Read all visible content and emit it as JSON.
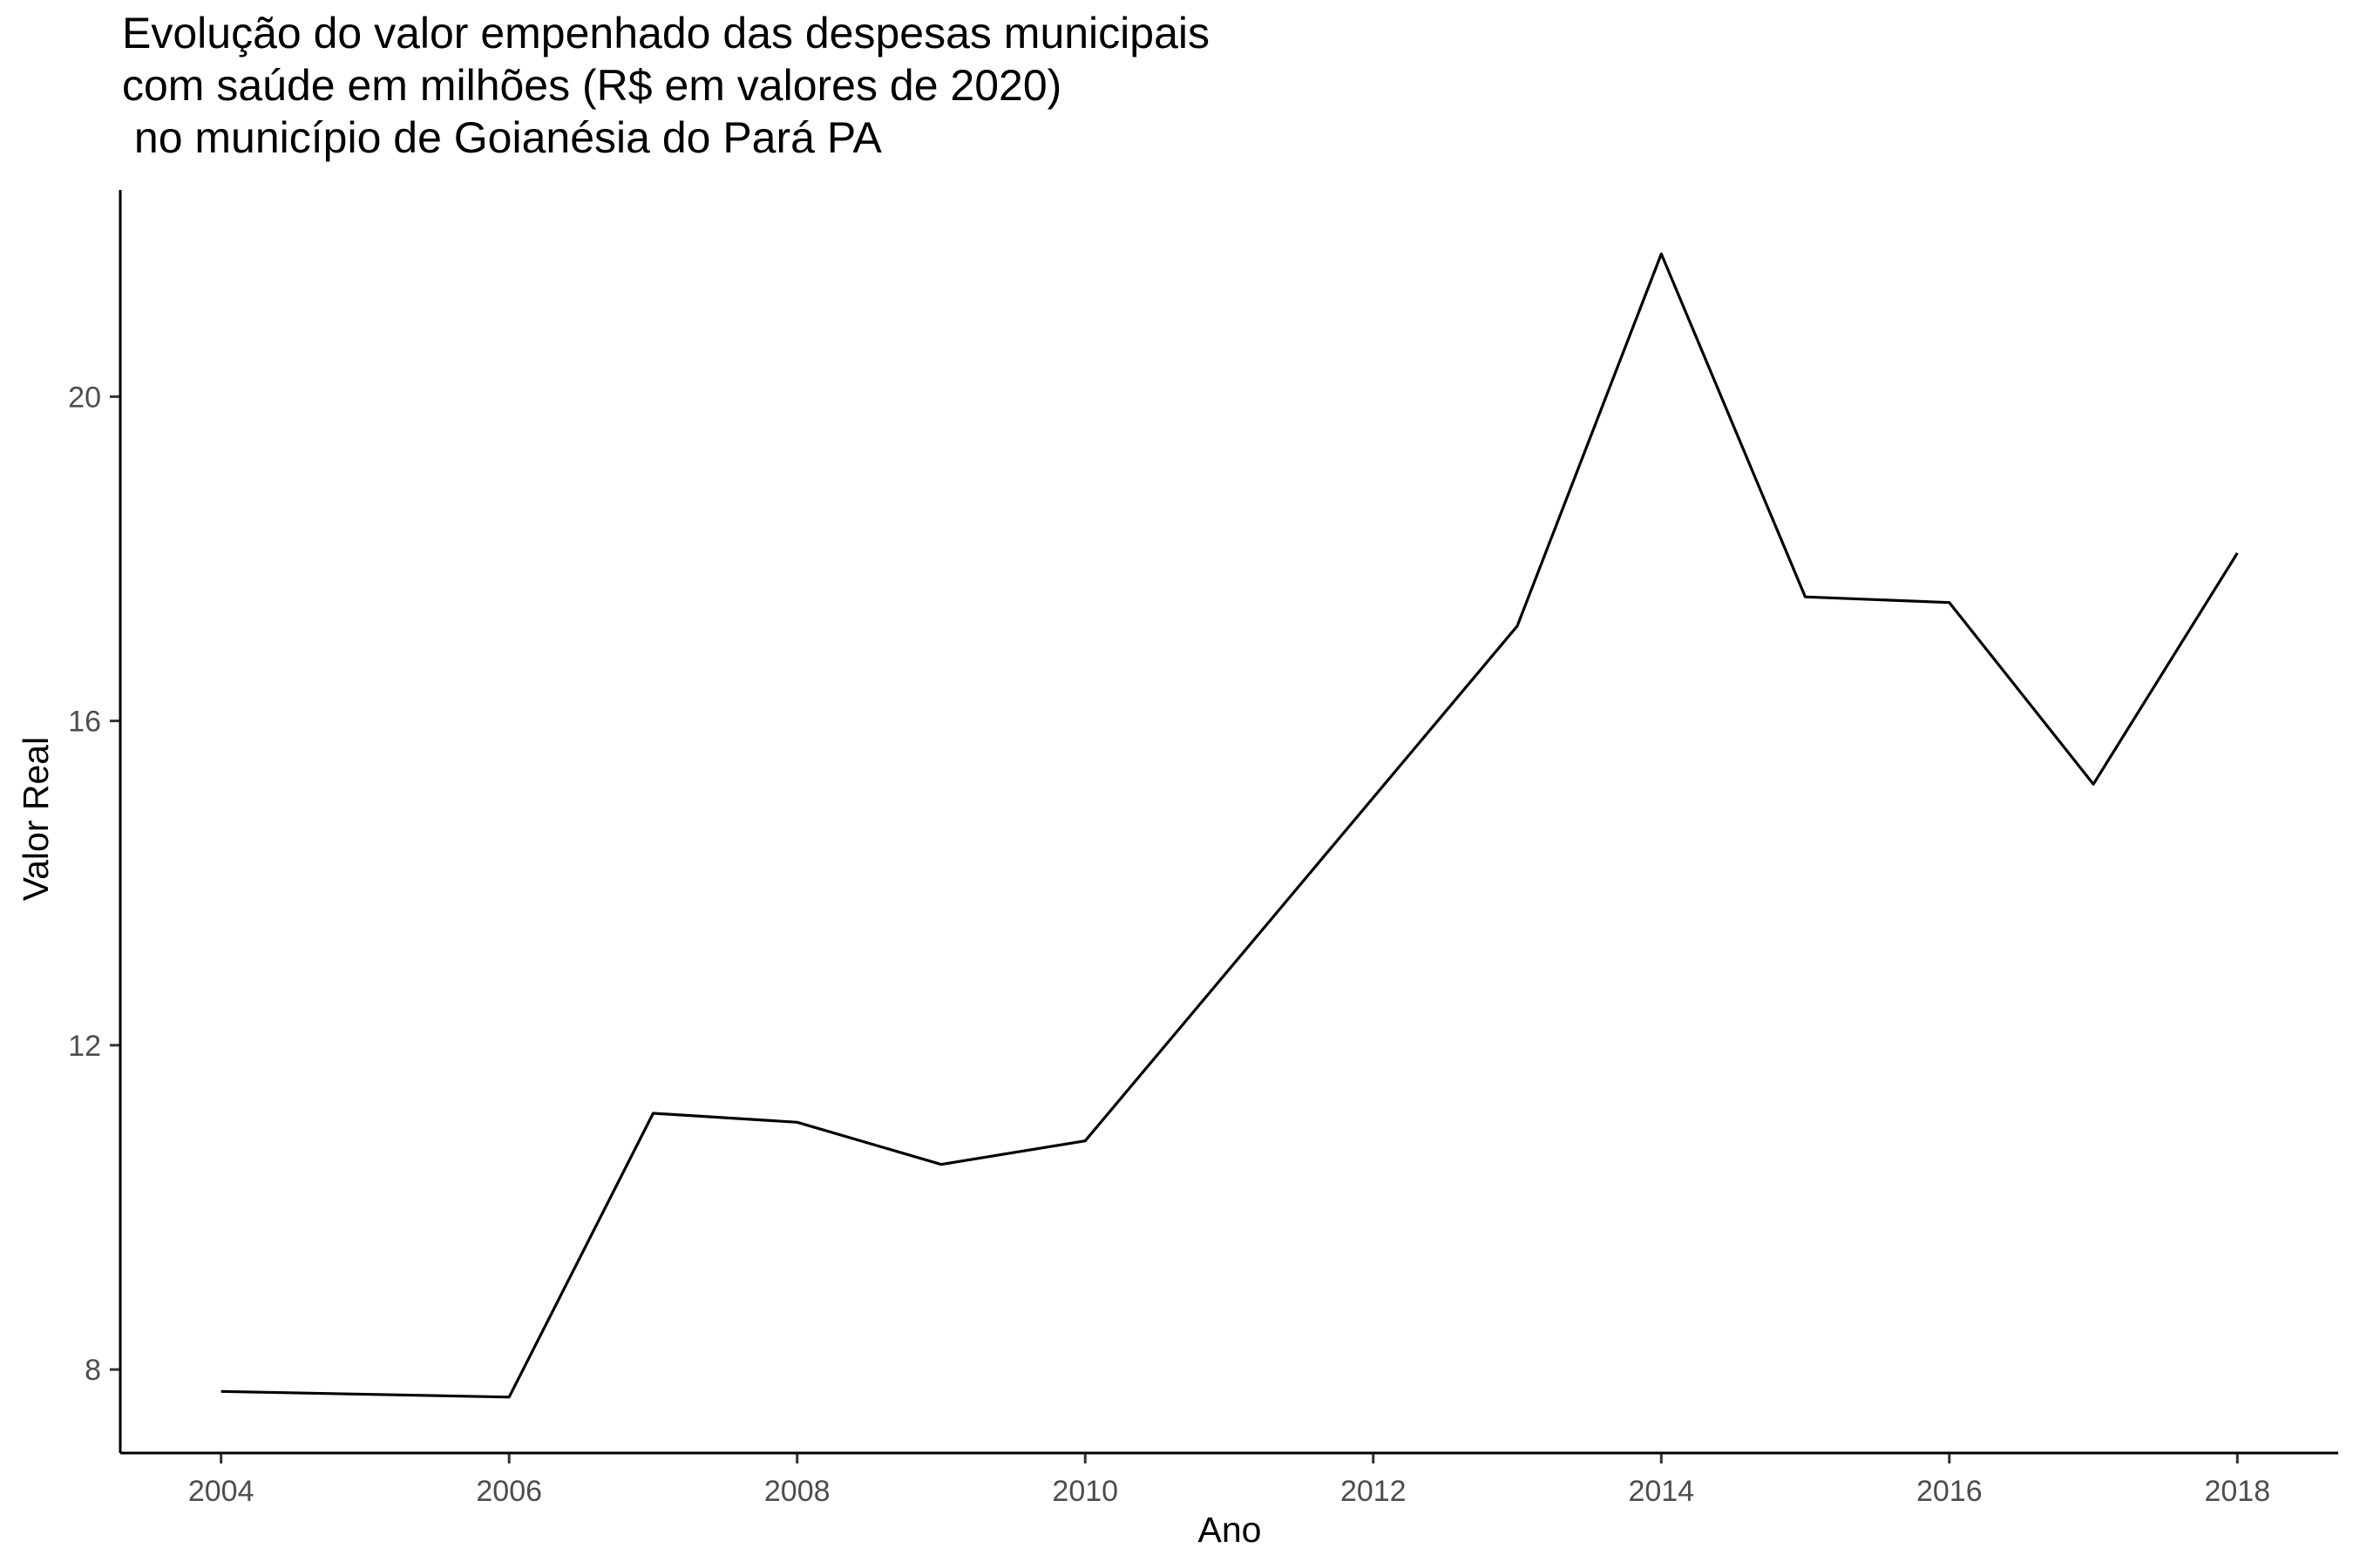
{
  "chart_data": {
    "type": "line",
    "title": "Evolução do valor empenhado das despesas municipais\ncom saúde em milhões (R$ em valores de 2020)\n no município de Goianésia do Pará PA",
    "xlabel": "Ano",
    "ylabel": "Valor Real",
    "x": [
      2004,
      2006,
      2007,
      2008,
      2009,
      2010,
      2013,
      2014,
      2015,
      2016,
      2017,
      2018
    ],
    "values": [
      7.73,
      7.66,
      11.16,
      11.05,
      10.53,
      10.82,
      17.17,
      21.76,
      17.53,
      17.46,
      15.22,
      18.07
    ],
    "xticks": [
      2004,
      2006,
      2008,
      2010,
      2012,
      2014,
      2016,
      2018
    ],
    "yticks": [
      8,
      12,
      16,
      20
    ],
    "xlim": [
      2003.3,
      2018.7
    ],
    "ylim": [
      6.97,
      22.55
    ],
    "grid": false,
    "line_color": "#000000",
    "axis_color": "#000000",
    "tick_label_color": "#4d4d4d"
  }
}
